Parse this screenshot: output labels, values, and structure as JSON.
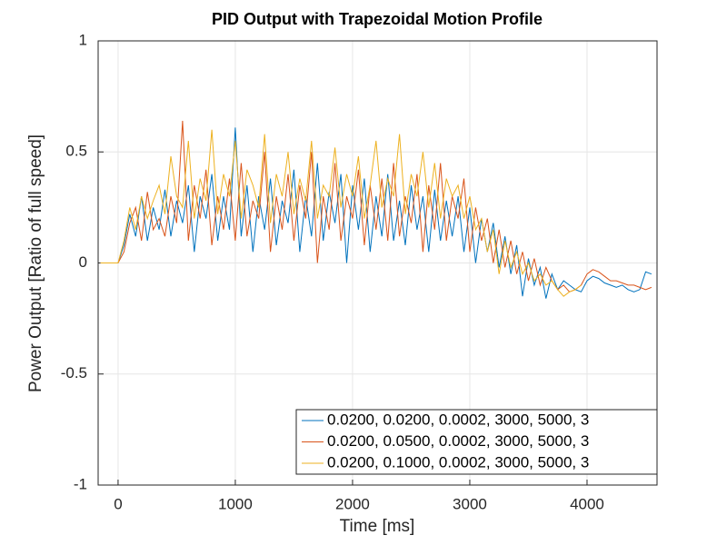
{
  "chart_data": {
    "type": "line",
    "title": "PID Output with Trapezoidal Motion Profile",
    "xlabel": "Time [ms]",
    "ylabel": "Power Output [Ratio of full speed]",
    "xlim": [
      -170,
      4597
    ],
    "ylim": [
      -1,
      1
    ],
    "xticks": [
      0,
      1000,
      2000,
      3000,
      4000
    ],
    "yticks": [
      -1,
      -0.5,
      0,
      0.5,
      1
    ],
    "grid": true,
    "legend": "lower right",
    "x": [
      -150,
      0,
      50,
      100,
      150,
      200,
      250,
      300,
      350,
      400,
      450,
      500,
      550,
      600,
      650,
      700,
      750,
      800,
      850,
      900,
      950,
      1000,
      1050,
      1100,
      1150,
      1200,
      1250,
      1300,
      1350,
      1400,
      1450,
      1500,
      1550,
      1600,
      1650,
      1700,
      1750,
      1800,
      1850,
      1900,
      1950,
      2000,
      2050,
      2100,
      2150,
      2200,
      2250,
      2300,
      2350,
      2400,
      2450,
      2500,
      2550,
      2600,
      2650,
      2700,
      2750,
      2800,
      2850,
      2900,
      2950,
      3000,
      3050,
      3100,
      3150,
      3200,
      3250,
      3300,
      3350,
      3400,
      3450,
      3500,
      3550,
      3600,
      3650,
      3700,
      3750,
      3800,
      3850,
      3900,
      3950,
      4000,
      4050,
      4100,
      4150,
      4200,
      4250,
      4300,
      4350,
      4400,
      4450,
      4500,
      4550
    ],
    "series": [
      {
        "name": "0.0200, 0.0200, 0.0002, 3000, 5000, 3",
        "color": "#0072bd",
        "values": [
          0,
          0,
          0.08,
          0.22,
          0.12,
          0.3,
          0.1,
          0.25,
          0.15,
          0.33,
          0.12,
          0.28,
          0.18,
          0.35,
          0.05,
          0.3,
          0.2,
          0.4,
          0.1,
          0.3,
          0.15,
          0.61,
          0.12,
          0.35,
          0.05,
          0.3,
          0.15,
          0.38,
          0.08,
          0.28,
          0.18,
          0.42,
          0.05,
          0.3,
          0.12,
          0.45,
          0.1,
          0.32,
          0.18,
          0.4,
          0,
          0.35,
          0.15,
          0.38,
          0.05,
          0.3,
          0.12,
          0.4,
          0.1,
          0.28,
          0.08,
          0.35,
          0.15,
          0.3,
          0.05,
          0.33,
          0.1,
          0.28,
          0.12,
          0.3,
          0.05,
          0.25,
          0,
          0.2,
          0.05,
          0.18,
          -0.02,
          0.12,
          -0.05,
          0.08,
          -0.15,
          0.02,
          -0.1,
          -0.02,
          -0.16,
          -0.05,
          -0.12,
          -0.08,
          -0.1,
          -0.12,
          -0.13,
          -0.08,
          -0.06,
          -0.07,
          -0.09,
          -0.1,
          -0.11,
          -0.1,
          -0.12,
          -0.13,
          -0.12,
          -0.04,
          -0.05
        ]
      },
      {
        "name": "0.0200, 0.0500, 0.0002, 3000, 5000, 3",
        "color": "#d95319",
        "values": [
          0,
          0,
          0.05,
          0.18,
          0.25,
          0.1,
          0.32,
          0.15,
          0.2,
          0.12,
          0.3,
          0.18,
          0.64,
          0.1,
          0.35,
          0.2,
          0.42,
          0.08,
          0.3,
          0.15,
          0.38,
          0.1,
          0.45,
          0.12,
          0.28,
          0.2,
          0.5,
          0.05,
          0.3,
          0.15,
          0.4,
          0.1,
          0.35,
          0.2,
          0.5,
          0,
          0.3,
          0.15,
          0.45,
          0.1,
          0.3,
          0.2,
          0.42,
          0.08,
          0.35,
          0.15,
          0.38,
          0.1,
          0.45,
          0.12,
          0.3,
          0.18,
          0.4,
          0.05,
          0.35,
          0.15,
          0.45,
          0.1,
          0.3,
          0.2,
          0.38,
          0.05,
          0.25,
          0.1,
          0.2,
          0,
          0.15,
          -0.02,
          0.1,
          -0.05,
          0.05,
          -0.08,
          0.02,
          -0.1,
          -0.02,
          -0.08,
          -0.12,
          -0.1,
          -0.13,
          -0.12,
          -0.1,
          -0.05,
          -0.03,
          -0.04,
          -0.06,
          -0.08,
          -0.08,
          -0.09,
          -0.1,
          -0.1,
          -0.11,
          -0.12,
          -0.11
        ]
      },
      {
        "name": "0.0200, 0.1000, 0.0002, 3000, 5000, 3",
        "color": "#edb120",
        "values": [
          0,
          0,
          0.1,
          0.25,
          0.15,
          0.3,
          0.2,
          0.28,
          0.35,
          0.22,
          0.48,
          0.3,
          0.25,
          0.55,
          0.2,
          0.38,
          0.28,
          0.6,
          0.22,
          0.4,
          0.3,
          0.55,
          0.2,
          0.42,
          0.35,
          0.25,
          0.58,
          0.18,
          0.4,
          0.3,
          0.5,
          0.22,
          0.38,
          0.28,
          0.55,
          0.2,
          0.35,
          0.3,
          0.52,
          0.25,
          0.4,
          0.3,
          0.48,
          0.2,
          0.35,
          0.55,
          0.25,
          0.38,
          0.3,
          0.58,
          0.22,
          0.4,
          0.3,
          0.5,
          0.25,
          0.45,
          0.2,
          0.38,
          0.3,
          0.35,
          0.2,
          0.3,
          0.15,
          0.2,
          0.05,
          0.15,
          -0.05,
          0.1,
          -0.02,
          0.05,
          -0.05,
          0,
          -0.08,
          -0.05,
          -0.1,
          -0.08,
          -0.12,
          -0.15,
          -0.13,
          -0.12,
          -0.1,
          null,
          null,
          null,
          null,
          null,
          null,
          null,
          null,
          null,
          null,
          null,
          null
        ]
      }
    ]
  }
}
